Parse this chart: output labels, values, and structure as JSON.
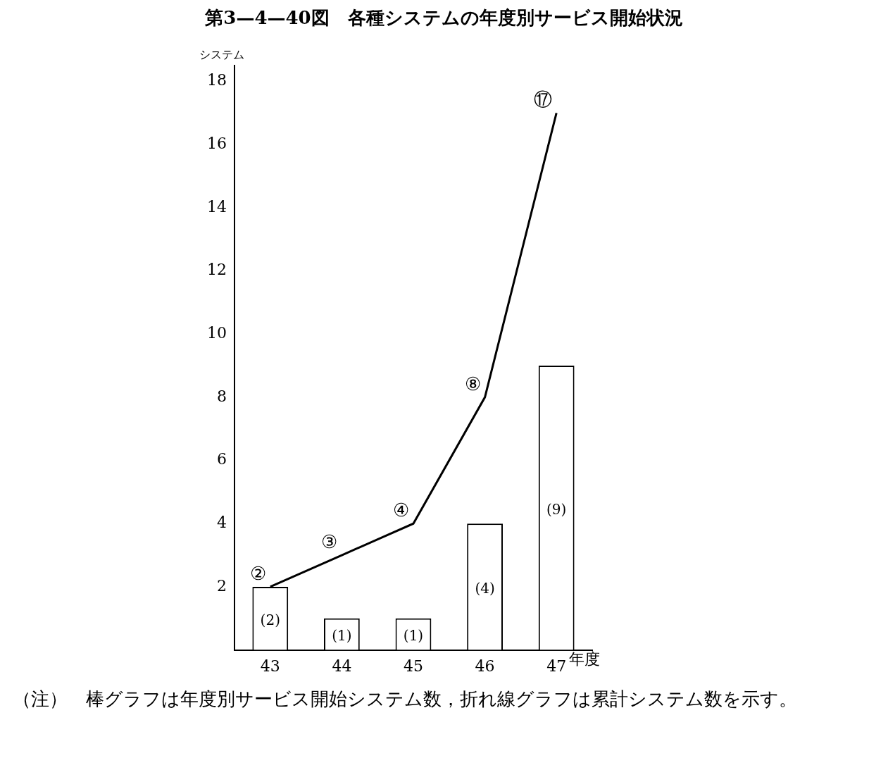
{
  "chart_data": {
    "type": "bar",
    "title": "第3—4—40図　各種システムの年度別サービス開始状況",
    "categories": [
      "43",
      "44",
      "45",
      "46",
      "47"
    ],
    "xlabel": "年度",
    "ylabel": "システム",
    "series": [
      {
        "color": "#ffffff",
        "values": [
          2,
          1,
          1,
          4,
          9
        ],
        "value_labels": [
          "(2)",
          "(1)",
          "(1)",
          "(4)",
          "(9)"
        ]
      },
      {
        "type": "line",
        "color": "#000000",
        "values": [
          2,
          3,
          4,
          8,
          17
        ],
        "value_labels": [
          "②",
          "③",
          "④",
          "⑧",
          "⑰"
        ]
      }
    ],
    "ylim": [
      0,
      18.5
    ],
    "yticks": [
      2,
      4,
      6,
      8,
      10,
      12,
      14,
      16,
      18
    ],
    "grid": false,
    "legend": false,
    "marker": "none",
    "annotations": [
      "（注）　棒グラフは年度別サービス開始システム数，折れ線グラフは累計システム数を示す。"
    ]
  }
}
